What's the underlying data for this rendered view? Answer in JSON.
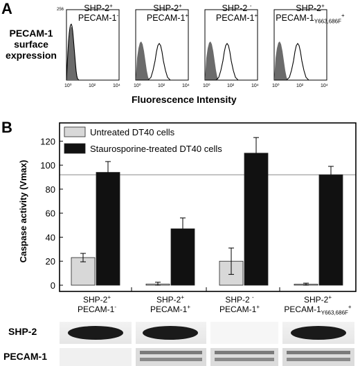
{
  "panel_a": {
    "letter": "A",
    "row_label_lines": [
      "PECAM-1",
      "surface",
      "expression"
    ],
    "x_axis_label": "Fluorescence Intensity",
    "y_max_label": "256",
    "x_tick_labels": [
      "10⁰",
      "10²",
      "10⁴"
    ],
    "histograms": [
      {
        "line1": "SHP-2",
        "line1_sup": "+",
        "line2": "PECAM-1",
        "line2_sup": "-",
        "line2_sub": ""
      },
      {
        "line1": "SHP-2",
        "line1_sup": "+",
        "line2": "PECAM-1",
        "line2_sup": "+",
        "line2_sub": ""
      },
      {
        "line1": "SHP-2 ",
        "line1_sup": "-",
        "line2": "PECAM-1",
        "line2_sup": "+",
        "line2_sub": ""
      },
      {
        "line1": "SHP-2",
        "line1_sup": "+",
        "line2": "PECAM-1",
        "line2_sup": "+",
        "line2_sub": "Y663,686F"
      }
    ]
  },
  "panel_b": {
    "letter": "B",
    "blot_labels": [
      "SHP-2",
      "PECAM-1"
    ],
    "categories": [
      {
        "line1": "SHP-2",
        "line1_sup": "+",
        "line2": "PECAM-1",
        "line2_sup": "-",
        "line2_sub": ""
      },
      {
        "line1": "SHP-2",
        "line1_sup": "+",
        "line2": "PECAM-1",
        "line2_sup": "+",
        "line2_sub": ""
      },
      {
        "line1": "SHP-2 ",
        "line1_sup": "-",
        "line2": "PECAM-1",
        "line2_sup": "+",
        "line2_sub": ""
      },
      {
        "line1": "SHP-2",
        "line1_sup": "+",
        "line2": "PECAM-1",
        "line2_sup": "+",
        "line2_sub": "Y663,686F"
      }
    ],
    "blot_shp2_present": [
      true,
      true,
      false,
      true
    ]
  },
  "chart_data": {
    "type": "bar",
    "ylabel": "Caspase activity (Vmax)",
    "ylim": [
      0,
      130
    ],
    "yticks": [
      0,
      20,
      40,
      60,
      80,
      100,
      120
    ],
    "reference_line": 92,
    "legend_position": "top-left",
    "series": [
      {
        "name": "Untreated DT40 cells",
        "color": "#d8d8d8",
        "values": [
          23,
          1,
          20,
          0.5
        ],
        "errors": [
          3.5,
          1.5,
          11,
          1.2
        ]
      },
      {
        "name": "Staurosporine-treated DT40 cells",
        "color": "#111111",
        "values": [
          94,
          47,
          110,
          92
        ],
        "errors": [
          9,
          9,
          13,
          7
        ]
      }
    ]
  }
}
